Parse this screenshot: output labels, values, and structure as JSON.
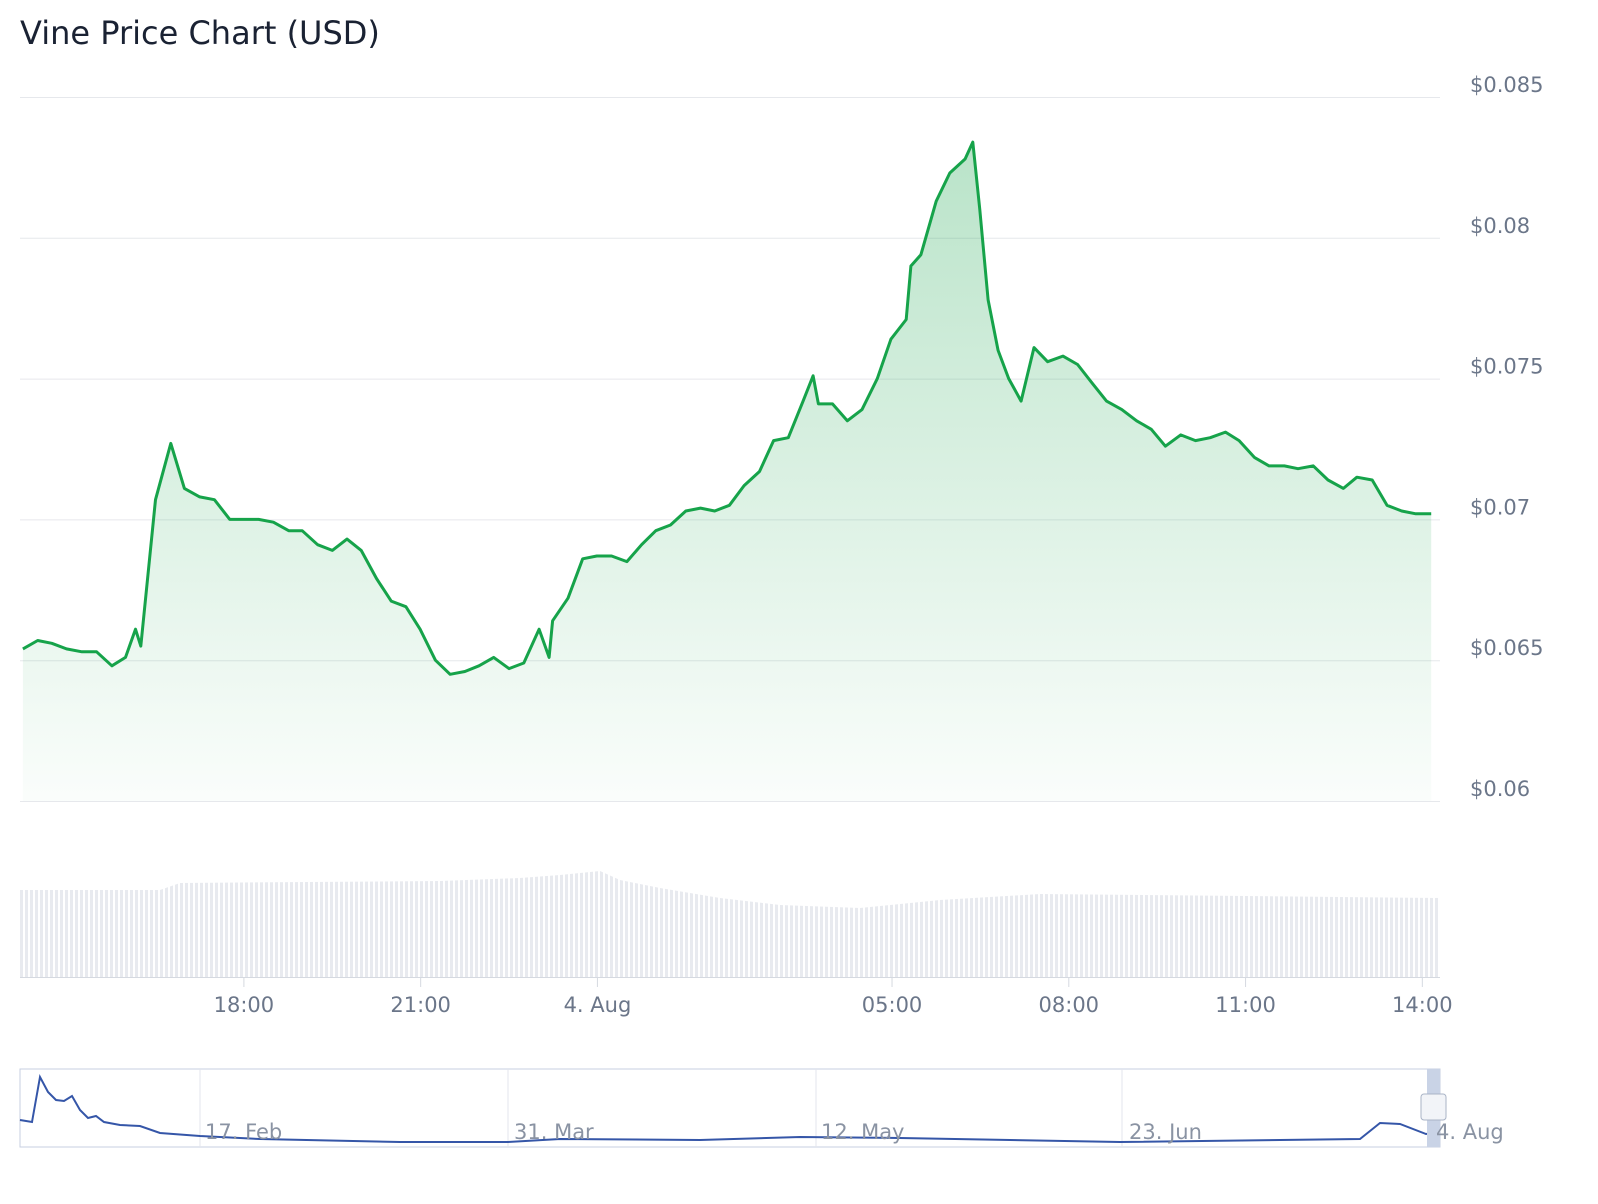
{
  "chart_data": {
    "type": "area",
    "title": "Vine Price Chart (USD)",
    "color": "#16a34a",
    "xlim": [
      14.2,
      38.3
    ],
    "xticks": [
      {
        "value": 18,
        "label": "18:00"
      },
      {
        "value": 21,
        "label": "21:00"
      },
      {
        "value": 24,
        "label": "4. Aug"
      },
      {
        "value": 29,
        "label": "05:00"
      },
      {
        "value": 32,
        "label": "08:00"
      },
      {
        "value": 35,
        "label": "11:00"
      },
      {
        "value": 38,
        "label": "14:00"
      }
    ],
    "ylim": [
      0.06,
      0.085
    ],
    "yticks": [
      {
        "value": 0.06,
        "label": "$0.06"
      },
      {
        "value": 0.065,
        "label": "$0.065"
      },
      {
        "value": 0.07,
        "label": "$0.07"
      },
      {
        "value": 0.075,
        "label": "$0.075"
      },
      {
        "value": 0.08,
        "label": "$0.08"
      },
      {
        "value": 0.085,
        "label": "$0.085"
      }
    ],
    "grid": true,
    "x": [
      14.25,
      14.5,
      14.74,
      14.99,
      15.25,
      15.5,
      15.76,
      15.99,
      16.16,
      16.25,
      16.5,
      16.76,
      16.99,
      17.25,
      17.5,
      17.76,
      17.99,
      18.25,
      18.5,
      18.76,
      18.99,
      19.25,
      19.5,
      19.75,
      19.99,
      20.25,
      20.5,
      20.75,
      20.99,
      21.25,
      21.5,
      21.75,
      21.99,
      22.24,
      22.5,
      22.75,
      23.01,
      23.18,
      23.24,
      23.5,
      23.75,
      23.99,
      24.24,
      24.5,
      24.75,
      24.99,
      25.24,
      25.5,
      25.75,
      25.99,
      26.24,
      26.49,
      26.75,
      26.99,
      27.24,
      27.49,
      27.66,
      27.75,
      27.99,
      28.24,
      28.49,
      28.75,
      28.98,
      29.24,
      29.32,
      29.49,
      29.75,
      29.98,
      30.24,
      30.37,
      30.49,
      30.63,
      30.8,
      30.98,
      31.19,
      31.41,
      31.64,
      31.9,
      32.15,
      32.41,
      32.64,
      32.9,
      33.15,
      33.4,
      33.64,
      33.9,
      34.15,
      34.4,
      34.66,
      34.89,
      35.15,
      35.4,
      35.66,
      35.89,
      36.15,
      36.4,
      36.66,
      36.89,
      37.15,
      37.4,
      37.65,
      37.89,
      38.15
    ],
    "values": [
      0.0654,
      0.0657,
      0.0656,
      0.0654,
      0.0653,
      0.0653,
      0.0648,
      0.0651,
      0.0661,
      0.0655,
      0.0707,
      0.0727,
      0.0711,
      0.0708,
      0.0707,
      0.07,
      0.07,
      0.07,
      0.0699,
      0.0696,
      0.0696,
      0.0691,
      0.0689,
      0.0693,
      0.0689,
      0.0679,
      0.0671,
      0.0669,
      0.0661,
      0.065,
      0.0645,
      0.0646,
      0.0648,
      0.0651,
      0.0647,
      0.0649,
      0.0661,
      0.0651,
      0.0664,
      0.0672,
      0.0686,
      0.0687,
      0.0687,
      0.0685,
      0.0691,
      0.0696,
      0.0698,
      0.0703,
      0.0704,
      0.0703,
      0.0705,
      0.0712,
      0.0717,
      0.0728,
      0.0729,
      0.0742,
      0.0751,
      0.0741,
      0.0741,
      0.0735,
      0.0739,
      0.075,
      0.0764,
      0.0771,
      0.079,
      0.0794,
      0.0813,
      0.0823,
      0.0828,
      0.0834,
      0.081,
      0.0778,
      0.076,
      0.075,
      0.0742,
      0.0761,
      0.0756,
      0.0758,
      0.0755,
      0.0748,
      0.0742,
      0.0739,
      0.0735,
      0.0732,
      0.0726,
      0.073,
      0.0728,
      0.0729,
      0.0731,
      0.0728,
      0.0722,
      0.0719,
      0.0719,
      0.0718,
      0.0719,
      0.0714,
      0.0711,
      0.0715,
      0.0714,
      0.0705,
      0.0703,
      0.0702,
      0.0702
    ],
    "navigator_labels": [
      "17. Feb",
      "31. Mar",
      "12. May",
      "23. Jun",
      "4. Aug"
    ]
  }
}
